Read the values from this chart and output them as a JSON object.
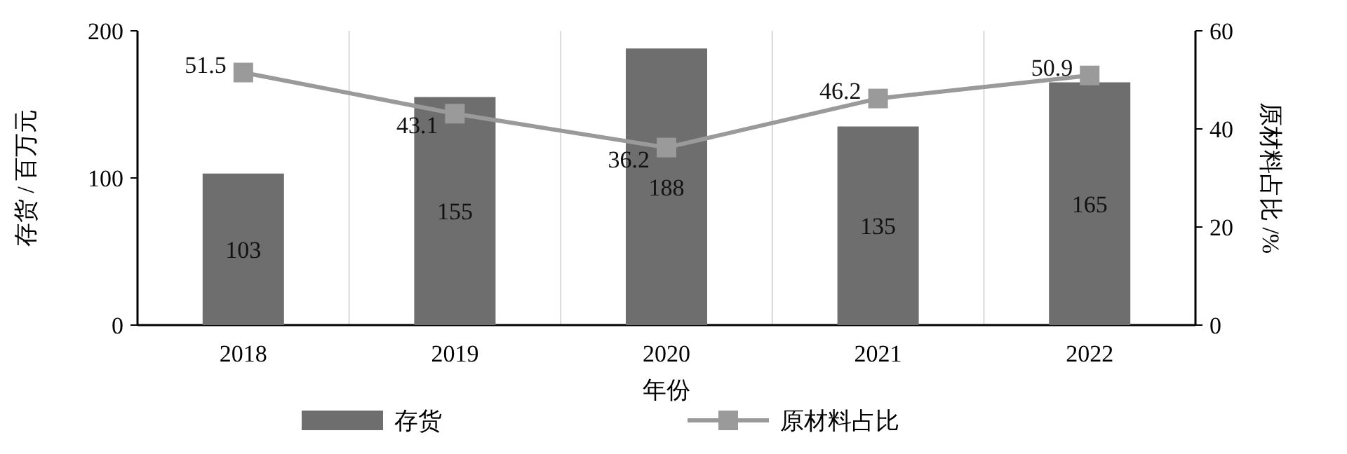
{
  "chart_data": {
    "type": "bar",
    "xlabel": "年份",
    "ylabel": "存货 / 百万元",
    "y2label": "原材料占比 /%",
    "categories": [
      "2018",
      "2019",
      "2020",
      "2021",
      "2022"
    ],
    "series": [
      {
        "name": "存货",
        "color": "#6e6e6e",
        "values": [
          103,
          155,
          188,
          135,
          165
        ]
      },
      {
        "name": "原材料占比",
        "type": "line",
        "axis": "y2",
        "color": "#9a9a9a",
        "values": [
          51.5,
          43.1,
          36.2,
          46.2,
          50.9
        ]
      }
    ],
    "ylim": [
      0,
      200
    ],
    "yticks": [
      0,
      100,
      200
    ],
    "y2lim": [
      0,
      60
    ],
    "y2ticks": [
      0,
      20,
      40,
      60
    ],
    "grid": "x",
    "legend": "bottom",
    "marker": "square",
    "data_labels": true
  }
}
